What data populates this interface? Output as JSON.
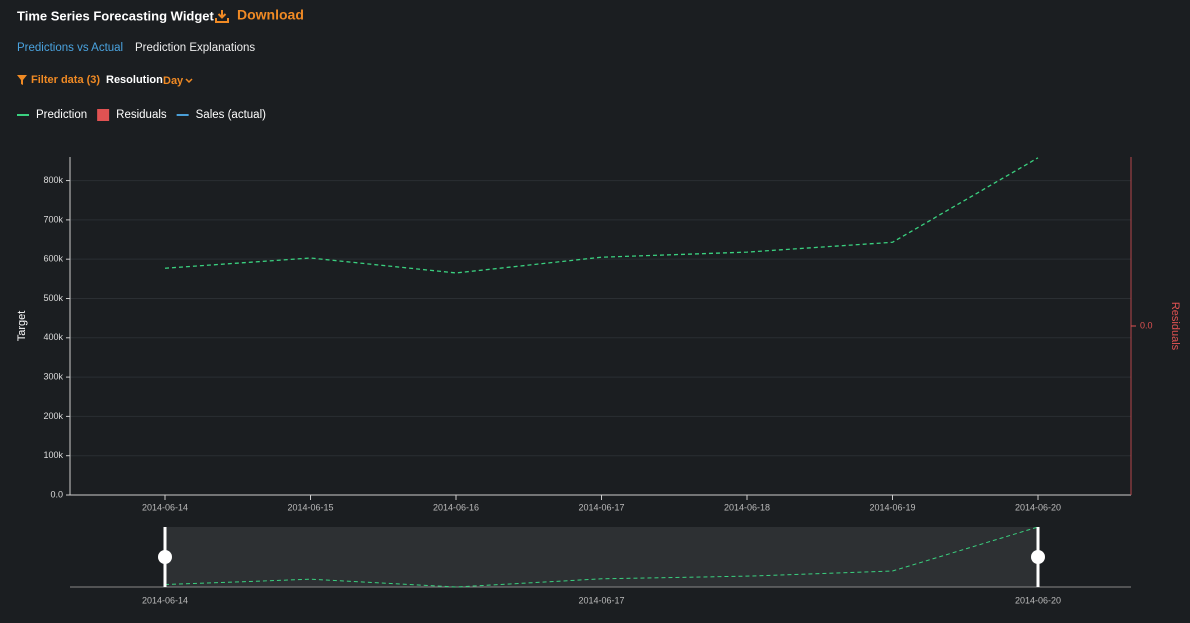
{
  "header": {
    "title": "Time Series Forecasting Widget",
    "download": "Download",
    "tabs": [
      "Predictions vs Actual",
      "Prediction Explanations"
    ],
    "filter": "Filter data (3)",
    "resolution_label": "Resolution",
    "resolution_value": "Day"
  },
  "chart_data": {
    "type": "line",
    "x": [
      "2014-06-14",
      "2014-06-15",
      "2014-06-16",
      "2014-06-17",
      "2014-06-18",
      "2014-06-19",
      "2014-06-20"
    ],
    "series": [
      {
        "name": "Prediction",
        "color": "#3ad07f",
        "values": [
          577000,
          603000,
          565000,
          605000,
          618000,
          643000,
          858000
        ]
      },
      {
        "name": "Residuals",
        "color": "#e05252",
        "axis": "y2",
        "values": [
          null,
          null,
          null,
          null,
          null,
          null,
          null
        ]
      },
      {
        "name": "Sales (actual)",
        "color": "#4a9fd8",
        "values": [
          null,
          null,
          null,
          null,
          null,
          null,
          null
        ]
      }
    ],
    "ylabel": "Target",
    "y2label": "Residuals",
    "ylim": [
      0,
      860000
    ],
    "yticks": [
      {
        "value": 0,
        "label": "0.0"
      },
      {
        "value": 100000,
        "label": "100k"
      },
      {
        "value": 200000,
        "label": "200k"
      },
      {
        "value": 300000,
        "label": "300k"
      },
      {
        "value": 400000,
        "label": "400k"
      },
      {
        "value": 500000,
        "label": "500k"
      },
      {
        "value": 600000,
        "label": "600k"
      },
      {
        "value": 700000,
        "label": "700k"
      },
      {
        "value": 800000,
        "label": "800k"
      }
    ],
    "y2lim": [
      -1,
      1
    ],
    "y2ticks": [
      {
        "value": 0,
        "label": "0.0"
      }
    ],
    "grid": true,
    "navigator_ticks": [
      0,
      3,
      6
    ]
  }
}
